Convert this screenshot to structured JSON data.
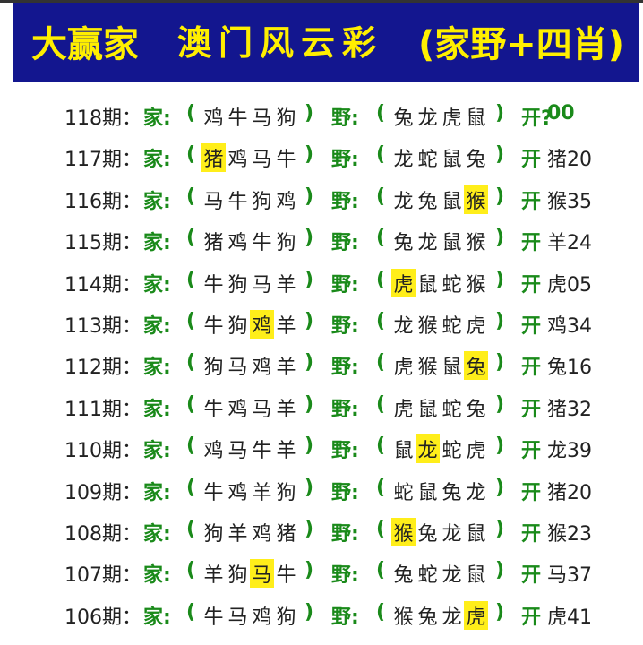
{
  "header": {
    "brand": "大赢家",
    "title": "澳门风云彩",
    "subtitle": "(家野+四肖)",
    "bg_color": "#13168f",
    "text_color": "#ffef00"
  },
  "labels": {
    "jia": "家:",
    "ye": "野:",
    "open": "开",
    "lparen": "(",
    "rparen": ")"
  },
  "highlight_color": "#ffee1a",
  "rows": [
    {
      "period": "118期：",
      "jia": [
        "鸡",
        "牛",
        "马",
        "狗"
      ],
      "jia_hit": -1,
      "ye": [
        "兔",
        "龙",
        "虎",
        "鼠"
      ],
      "ye_hit": -1,
      "open": "开?",
      "result": "00"
    },
    {
      "period": "117期：",
      "jia": [
        "猪",
        "鸡",
        "马",
        "牛"
      ],
      "jia_hit": 0,
      "ye": [
        "龙",
        "蛇",
        "鼠",
        "兔"
      ],
      "ye_hit": -1,
      "open": "开",
      "result": "猪20"
    },
    {
      "period": "116期：",
      "jia": [
        "马",
        "牛",
        "狗",
        "鸡"
      ],
      "jia_hit": -1,
      "ye": [
        "龙",
        "兔",
        "鼠",
        "猴"
      ],
      "ye_hit": 3,
      "open": "开",
      "result": "猴35"
    },
    {
      "period": "115期：",
      "jia": [
        "猪",
        "鸡",
        "牛",
        "狗"
      ],
      "jia_hit": -1,
      "ye": [
        "兔",
        "龙",
        "鼠",
        "猴"
      ],
      "ye_hit": -1,
      "open": "开",
      "result": "羊24"
    },
    {
      "period": "114期：",
      "jia": [
        "牛",
        "狗",
        "马",
        "羊"
      ],
      "jia_hit": -1,
      "ye": [
        "虎",
        "鼠",
        "蛇",
        "猴"
      ],
      "ye_hit": 0,
      "open": "开",
      "result": "虎05"
    },
    {
      "period": "113期：",
      "jia": [
        "牛",
        "狗",
        "鸡",
        "羊"
      ],
      "jia_hit": 2,
      "ye": [
        "龙",
        "猴",
        "蛇",
        "虎"
      ],
      "ye_hit": -1,
      "open": "开",
      "result": "鸡34"
    },
    {
      "period": "112期：",
      "jia": [
        "狗",
        "马",
        "鸡",
        "羊"
      ],
      "jia_hit": -1,
      "ye": [
        "虎",
        "猴",
        "鼠",
        "兔"
      ],
      "ye_hit": 3,
      "open": "开",
      "result": "兔16"
    },
    {
      "period": "111期：",
      "jia": [
        "牛",
        "鸡",
        "马",
        "羊"
      ],
      "jia_hit": -1,
      "ye": [
        "虎",
        "鼠",
        "蛇",
        "兔"
      ],
      "ye_hit": -1,
      "open": "开",
      "result": "猪32"
    },
    {
      "period": "110期：",
      "jia": [
        "鸡",
        "马",
        "牛",
        "羊"
      ],
      "jia_hit": -1,
      "ye": [
        "鼠",
        "龙",
        "蛇",
        "虎"
      ],
      "ye_hit": 1,
      "open": "开",
      "result": "龙39"
    },
    {
      "period": "109期：",
      "jia": [
        "牛",
        "鸡",
        "羊",
        "狗"
      ],
      "jia_hit": -1,
      "ye": [
        "蛇",
        "鼠",
        "兔",
        "龙"
      ],
      "ye_hit": -1,
      "open": "开",
      "result": "猪20"
    },
    {
      "period": "108期：",
      "jia": [
        "狗",
        "羊",
        "鸡",
        "猪"
      ],
      "jia_hit": -1,
      "ye": [
        "猴",
        "兔",
        "龙",
        "鼠"
      ],
      "ye_hit": 0,
      "open": "开",
      "result": "猴23"
    },
    {
      "period": "107期：",
      "jia": [
        "羊",
        "狗",
        "马",
        "牛"
      ],
      "jia_hit": 2,
      "ye": [
        "兔",
        "蛇",
        "龙",
        "鼠"
      ],
      "ye_hit": -1,
      "open": "开",
      "result": "马37"
    },
    {
      "period": "106期：",
      "jia": [
        "牛",
        "马",
        "鸡",
        "狗"
      ],
      "jia_hit": -1,
      "ye": [
        "猴",
        "兔",
        "龙",
        "虎"
      ],
      "ye_hit": 3,
      "open": "开",
      "result": "虎41"
    }
  ]
}
